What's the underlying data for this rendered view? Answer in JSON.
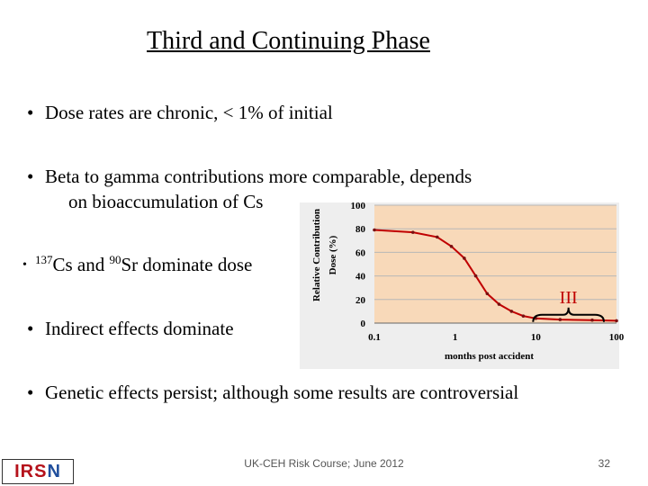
{
  "title": "Third and Continuing Phase",
  "bullets": {
    "b1": "Dose rates are chronic, < 1% of initial",
    "b2_line1": "Beta to gamma contributions more comparable, depends",
    "b2_line2": "on bioaccumulation of Cs",
    "b3_iso1": "137",
    "b3_el1": "Cs and ",
    "b3_iso2": "90",
    "b3_el2": "Sr dominate dose",
    "b4": "Indirect effects dominate",
    "b5": "Genetic effects persist; although some results are controversial"
  },
  "bullet_char": "•",
  "chart_data": {
    "type": "line",
    "xlabel": "months post accident",
    "ylabel": "Relative Contribution Dose (%)",
    "x_scale": "log",
    "xlim": [
      0.1,
      100
    ],
    "ylim": [
      0,
      100
    ],
    "x_ticks": [
      "0.1",
      "1",
      "10",
      "100"
    ],
    "y_ticks": [
      "0",
      "20",
      "40",
      "60",
      "80",
      "100"
    ],
    "series": [
      {
        "x": [
          0.1,
          0.3,
          0.6,
          0.9,
          1.3,
          1.8,
          2.5,
          3.5,
          5,
          7,
          10,
          20,
          50,
          100
        ],
        "y": [
          79,
          77,
          73,
          65,
          55,
          40,
          25,
          16,
          10,
          6,
          4,
          3,
          2.5,
          2
        ]
      }
    ],
    "annotation": {
      "label": "III",
      "x_from": 10,
      "x_to": 100
    },
    "colors": {
      "line": "#c00000",
      "plot_bg": "#f8d9b9",
      "gridline": "#b7b7b7",
      "background": "#eeeeee"
    }
  },
  "footer": "UK-CEH Risk Course; June 2012",
  "page_number": "32",
  "logo": {
    "main": "IRS",
    "last": "N"
  }
}
